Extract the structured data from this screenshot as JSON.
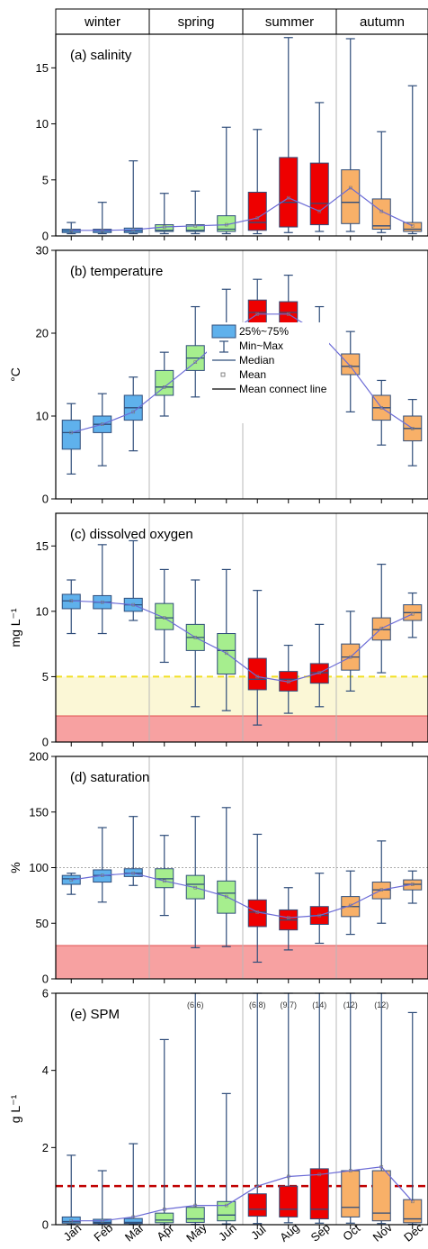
{
  "seasons": [
    "winter",
    "spring",
    "summer",
    "autumn"
  ],
  "months": [
    "Jan",
    "Feb",
    "Mar",
    "Apr",
    "May",
    "Jun",
    "Jul",
    "Aug",
    "Sep",
    "Oct",
    "Nov",
    "Dec"
  ],
  "legend": {
    "box": "25%~75%",
    "range": "Min~Max",
    "median": "Median",
    "mean": "Mean",
    "mean_line": "Mean connect line"
  },
  "colors": {
    "winter": "#5fb1ec",
    "spring": "#a6ee8e",
    "summer": "#ee0000",
    "autumn": "#f8b068",
    "whisker": "#2f4d7a",
    "mean_line": "#6b6bd6",
    "threshold_fill": "#f7a1a1",
    "low_do_zone": "#fbf7d6",
    "threshold_line_do": "#f2e024",
    "threshold_line_spm": "#c00000"
  },
  "chart_data": [
    {
      "type": "box",
      "title": "(a) salinity",
      "ylabel": "",
      "ylim": [
        0,
        18
      ],
      "yticks": [
        0,
        5,
        10,
        15
      ],
      "categories": [
        "Jan",
        "Feb",
        "Mar",
        "Apr",
        "May",
        "Jun",
        "Jul",
        "Aug",
        "Sep",
        "Oct",
        "Nov",
        "Dec"
      ],
      "boxes": [
        {
          "min": 0.2,
          "q1": 0.3,
          "median": 0.45,
          "q3": 0.6,
          "max": 1.2
        },
        {
          "min": 0.2,
          "q1": 0.3,
          "median": 0.45,
          "q3": 0.6,
          "max": 3.0
        },
        {
          "min": 0.2,
          "q1": 0.3,
          "median": 0.45,
          "q3": 0.7,
          "max": 6.7
        },
        {
          "min": 0.2,
          "q1": 0.4,
          "median": 0.5,
          "q3": 1.0,
          "max": 3.8
        },
        {
          "min": 0.2,
          "q1": 0.4,
          "median": 0.5,
          "q3": 1.0,
          "max": 4.0
        },
        {
          "min": 0.2,
          "q1": 0.4,
          "median": 0.6,
          "q3": 1.8,
          "max": 9.7
        },
        {
          "min": 0.2,
          "q1": 0.5,
          "median": 1.2,
          "q3": 3.9,
          "max": 9.5
        },
        {
          "min": 0.3,
          "q1": 0.8,
          "median": 3.0,
          "q3": 7.0,
          "max": 17.7
        },
        {
          "min": 0.4,
          "q1": 1.0,
          "median": 2.9,
          "q3": 6.5,
          "max": 11.9
        },
        {
          "min": 0.4,
          "q1": 1.1,
          "median": 3.0,
          "q3": 5.9,
          "max": 17.6
        },
        {
          "min": 0.3,
          "q1": 0.6,
          "median": 0.9,
          "q3": 3.3,
          "max": 9.3
        },
        {
          "min": 0.2,
          "q1": 0.4,
          "median": 0.6,
          "q3": 1.2,
          "max": 13.4
        }
      ],
      "means": [
        0.5,
        0.5,
        0.55,
        0.8,
        0.9,
        1.0,
        1.6,
        3.4,
        2.2,
        4.3,
        2.2,
        0.9
      ],
      "threshold_bands": [],
      "threshold_lines": [],
      "annotations": []
    },
    {
      "type": "box",
      "title": "(b) temperature",
      "ylabel": "°C",
      "ylim": [
        0,
        30
      ],
      "yticks": [
        0,
        10,
        20,
        30
      ],
      "categories": [
        "Jan",
        "Feb",
        "Mar",
        "Apr",
        "May",
        "Jun",
        "Jul",
        "Aug",
        "Sep",
        "Oct",
        "Nov",
        "Dec"
      ],
      "boxes": [
        {
          "min": 3.0,
          "q1": 6.0,
          "median": 8.0,
          "q3": 9.5,
          "max": 11.5
        },
        {
          "min": 4.0,
          "q1": 8.0,
          "median": 9.0,
          "q3": 10.0,
          "max": 12.7
        },
        {
          "min": 5.8,
          "q1": 9.5,
          "median": 11.0,
          "q3": 12.5,
          "max": 14.7
        },
        {
          "min": 10.0,
          "q1": 12.5,
          "median": 13.5,
          "q3": 15.5,
          "max": 17.7
        },
        {
          "min": 12.3,
          "q1": 15.5,
          "median": 17.0,
          "q3": 18.5,
          "max": 23.2
        },
        {
          "min": 14.0,
          "q1": 19.0,
          "median": 20.5,
          "q3": 21.0,
          "max": 25.3
        },
        {
          "min": 18.8,
          "q1": 21.0,
          "median": 22.5,
          "q3": 24.0,
          "max": 26.5
        },
        {
          "min": 18.0,
          "q1": 21.0,
          "median": 22.5,
          "q3": 23.8,
          "max": 27.0
        },
        {
          "min": 15.5,
          "q1": 19.0,
          "median": 20.0,
          "q3": 20.8,
          "max": 23.2
        },
        {
          "min": 10.5,
          "q1": 15.0,
          "median": 16.0,
          "q3": 17.5,
          "max": 20.2
        },
        {
          "min": 6.5,
          "q1": 9.5,
          "median": 11.0,
          "q3": 12.5,
          "max": 14.3
        },
        {
          "min": 4.0,
          "q1": 7.0,
          "median": 8.5,
          "q3": 10.0,
          "max": 12.0
        }
      ],
      "means": [
        8.0,
        9.0,
        10.5,
        13.5,
        16.5,
        19.8,
        22.3,
        22.3,
        20.0,
        16.0,
        11.0,
        8.5
      ],
      "threshold_bands": [],
      "threshold_lines": [],
      "annotations": []
    },
    {
      "type": "box",
      "title": "(c) dissolved oxygen",
      "ylabel": "mg L⁻¹",
      "ylim": [
        0,
        17.5
      ],
      "yticks": [
        0,
        5,
        10,
        15
      ],
      "categories": [
        "Jan",
        "Feb",
        "Mar",
        "Apr",
        "May",
        "Jun",
        "Jul",
        "Aug",
        "Sep",
        "Oct",
        "Nov",
        "Dec"
      ],
      "boxes": [
        {
          "min": 8.3,
          "q1": 10.2,
          "median": 10.8,
          "q3": 11.3,
          "max": 12.4
        },
        {
          "min": 8.3,
          "q1": 10.2,
          "median": 10.7,
          "q3": 11.2,
          "max": 15.1
        },
        {
          "min": 9.3,
          "q1": 10.0,
          "median": 10.5,
          "q3": 11.0,
          "max": 15.4
        },
        {
          "min": 6.1,
          "q1": 8.6,
          "median": 9.5,
          "q3": 10.6,
          "max": 13.2
        },
        {
          "min": 2.7,
          "q1": 7.0,
          "median": 8.0,
          "q3": 9.0,
          "max": 12.4
        },
        {
          "min": 2.4,
          "q1": 5.2,
          "median": 7.0,
          "q3": 8.3,
          "max": 13.2
        },
        {
          "min": 1.3,
          "q1": 4.0,
          "median": 4.8,
          "q3": 6.4,
          "max": 11.6
        },
        {
          "min": 2.2,
          "q1": 3.9,
          "median": 4.8,
          "q3": 5.4,
          "max": 7.4
        },
        {
          "min": 2.7,
          "q1": 4.5,
          "median": 5.3,
          "q3": 6.0,
          "max": 9.0
        },
        {
          "min": 3.9,
          "q1": 5.5,
          "median": 6.5,
          "q3": 7.5,
          "max": 10.0
        },
        {
          "min": 5.3,
          "q1": 7.8,
          "median": 8.6,
          "q3": 9.5,
          "max": 13.6
        },
        {
          "min": 8.0,
          "q1": 9.3,
          "median": 9.9,
          "q3": 10.5,
          "max": 11.4
        }
      ],
      "means": [
        10.8,
        10.7,
        10.5,
        9.5,
        8.0,
        6.8,
        5.0,
        4.6,
        5.3,
        6.5,
        8.7,
        9.8
      ],
      "threshold_bands": [
        {
          "from": 0,
          "to": 2,
          "color": "threshold_fill"
        },
        {
          "from": 2,
          "to": 5,
          "color": "low_do_zone"
        }
      ],
      "threshold_lines": [
        {
          "value": 5,
          "color": "threshold_line_do",
          "style": "dashed"
        }
      ],
      "annotations": []
    },
    {
      "type": "box",
      "title": "(d) saturation",
      "ylabel": "%",
      "ylim": [
        0,
        200
      ],
      "yticks": [
        0,
        50,
        100,
        150,
        200
      ],
      "categories": [
        "Jan",
        "Feb",
        "Mar",
        "Apr",
        "May",
        "Jun",
        "Jul",
        "Aug",
        "Sep",
        "Oct",
        "Nov",
        "Dec"
      ],
      "boxes": [
        {
          "min": 76,
          "q1": 85,
          "median": 90,
          "q3": 93,
          "max": 95
        },
        {
          "min": 69,
          "q1": 87,
          "median": 93,
          "q3": 98,
          "max": 136
        },
        {
          "min": 84,
          "q1": 92,
          "median": 95,
          "q3": 99,
          "max": 146
        },
        {
          "min": 57,
          "q1": 82,
          "median": 90,
          "q3": 99,
          "max": 129
        },
        {
          "min": 28,
          "q1": 72,
          "median": 85,
          "q3": 93,
          "max": 146
        },
        {
          "min": 29,
          "q1": 59,
          "median": 77,
          "q3": 88,
          "max": 154
        },
        {
          "min": 15,
          "q1": 47,
          "median": 60,
          "q3": 71,
          "max": 130
        },
        {
          "min": 26,
          "q1": 44,
          "median": 53,
          "q3": 62,
          "max": 82
        },
        {
          "min": 32,
          "q1": 49,
          "median": 57,
          "q3": 65,
          "max": 95
        },
        {
          "min": 40,
          "q1": 56,
          "median": 65,
          "q3": 74,
          "max": 97
        },
        {
          "min": 50,
          "q1": 72,
          "median": 80,
          "q3": 87,
          "max": 124
        },
        {
          "min": 68,
          "q1": 80,
          "median": 85,
          "q3": 89,
          "max": 97
        }
      ],
      "means": [
        89,
        93,
        95,
        88,
        82,
        74,
        60,
        55,
        57,
        66,
        80,
        85
      ],
      "threshold_bands": [
        {
          "from": 0,
          "to": 30,
          "color": "threshold_fill"
        }
      ],
      "threshold_lines": [
        {
          "value": 100,
          "color": "#aaaaaa",
          "style": "dotted"
        }
      ],
      "annotations": []
    },
    {
      "type": "box",
      "title": "(e) SPM",
      "ylabel": "g L⁻¹",
      "ylim": [
        0,
        6
      ],
      "yticks": [
        0,
        2,
        4,
        6
      ],
      "categories": [
        "Jan",
        "Feb",
        "Mar",
        "Apr",
        "May",
        "Jun",
        "Jul",
        "Aug",
        "Sep",
        "Oct",
        "Nov",
        "Dec"
      ],
      "boxes": [
        {
          "min": 0.01,
          "q1": 0.04,
          "median": 0.08,
          "q3": 0.2,
          "max": 1.8
        },
        {
          "min": 0.01,
          "q1": 0.03,
          "median": 0.06,
          "q3": 0.14,
          "max": 1.4
        },
        {
          "min": 0.01,
          "q1": 0.03,
          "median": 0.06,
          "q3": 0.16,
          "max": 2.1
        },
        {
          "min": 0.01,
          "q1": 0.05,
          "median": 0.12,
          "q3": 0.3,
          "max": 4.8
        },
        {
          "min": 0.01,
          "q1": 0.06,
          "median": 0.15,
          "q3": 0.45,
          "max": 6.0
        },
        {
          "min": 0.02,
          "q1": 0.1,
          "median": 0.25,
          "q3": 0.6,
          "max": 3.4
        },
        {
          "min": 0.03,
          "q1": 0.22,
          "median": 0.4,
          "q3": 0.8,
          "max": 6.0
        },
        {
          "min": 0.05,
          "q1": 0.2,
          "median": 0.4,
          "q3": 1.0,
          "max": 6.0
        },
        {
          "min": 0.04,
          "q1": 0.15,
          "median": 0.4,
          "q3": 1.45,
          "max": 6.0
        },
        {
          "min": 0.04,
          "q1": 0.2,
          "median": 0.45,
          "q3": 1.4,
          "max": 6.0
        },
        {
          "min": 0.03,
          "q1": 0.1,
          "median": 0.3,
          "q3": 1.4,
          "max": 6.0
        },
        {
          "min": 0.01,
          "q1": 0.05,
          "median": 0.15,
          "q3": 0.65,
          "max": 5.5
        }
      ],
      "means": [
        0.1,
        0.1,
        0.2,
        0.4,
        0.5,
        0.5,
        1.0,
        1.25,
        1.3,
        1.4,
        1.5,
        0.6
      ],
      "threshold_bands": [],
      "threshold_lines": [
        {
          "value": 1,
          "color": "threshold_line_spm",
          "style": "dashed"
        }
      ],
      "annotations": [
        "",
        "",
        "",
        "",
        "(6.6)",
        "",
        "(6.8)",
        "(9.7)",
        "(14)",
        "(12)",
        "(12)",
        ""
      ]
    }
  ]
}
